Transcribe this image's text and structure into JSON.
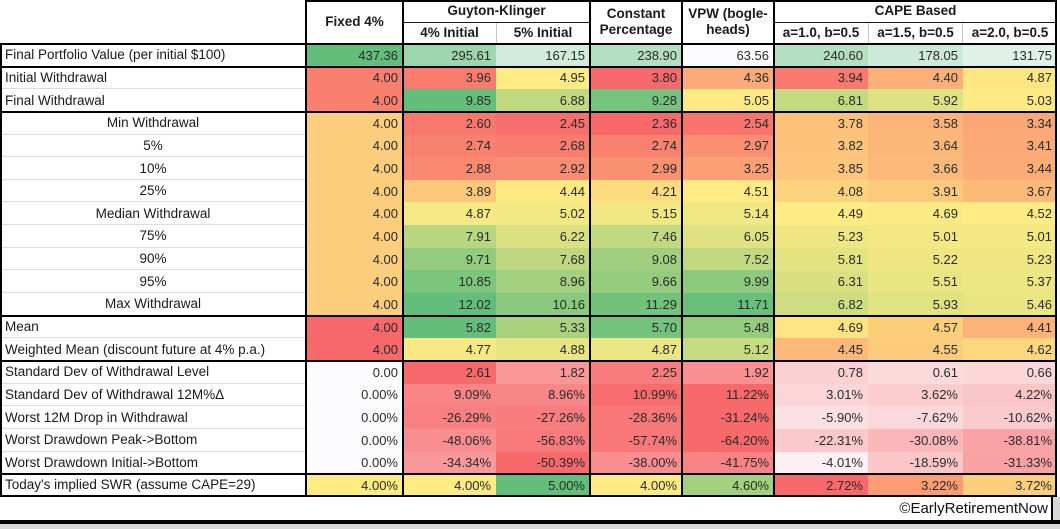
{
  "header": {
    "fixed": "Fixed 4%",
    "gk": "Guyton-Klinger",
    "gk_sub1": "4% Initial",
    "gk_sub2": "5% Initial",
    "constant_line1": "Constant",
    "constant_line2": "Percentage",
    "vpw_line1": "VPW (bogle-",
    "vpw_line2": "heads)",
    "cape": "CAPE Based",
    "cape_sub1": "a=1.0, b=0.5",
    "cape_sub2": "a=1.5, b=0.5",
    "cape_sub3": "a=2.0, b=0.5"
  },
  "palette": {
    "scale_red": "#F8696B",
    "scale_yellow": "#FFEB84",
    "scale_green": "#63BE7B",
    "scale_white": "#FCFCFF",
    "border_black": "#000000",
    "window_gray": "#D6D6D6"
  },
  "table": {
    "rows": [
      {
        "label": "Final Portfolio Value (per initial $100)",
        "align": "left",
        "values": [
          "437.36",
          "295.61",
          "167.15",
          "238.90",
          "63.56",
          "240.60",
          "178.05",
          "131.75"
        ],
        "colors": [
          "#63BE7B",
          "#9DD6AD",
          "#D2EBDA",
          "#B4DFC1",
          "#FCFCFF",
          "#B4DFC0",
          "#CDE9D7",
          "#E0F1E7"
        ]
      },
      {
        "label": "Initial Withdrawal",
        "align": "left",
        "values": [
          "4.00",
          "3.96",
          "4.95",
          "3.80",
          "4.36",
          "3.94",
          "4.40",
          "4.87"
        ],
        "colors": [
          "#F9806F",
          "#F97C6F",
          "#FEEB84",
          "#F8696B",
          "#FCAB78",
          "#F9796F",
          "#FCAF79",
          "#FEE683"
        ]
      },
      {
        "label": "Final Withdrawal",
        "align": "left",
        "values": [
          "4.00",
          "9.85",
          "6.88",
          "9.28",
          "5.05",
          "6.81",
          "5.92",
          "5.03"
        ],
        "colors": [
          "#F9806F",
          "#63BE7B",
          "#C1D980",
          "#75C37C",
          "#FBEA84",
          "#C3DA81",
          "#DFE282",
          "#FBEA84"
        ]
      },
      {
        "label": "Min Withdrawal",
        "align": "center",
        "values": [
          "4.00",
          "2.60",
          "2.45",
          "2.36",
          "2.54",
          "3.78",
          "3.58",
          "3.34"
        ],
        "colors": [
          "#FDCE7E",
          "#F9786E",
          "#F86E6C",
          "#F8696B",
          "#F9746D",
          "#FDC17A",
          "#FCB478",
          "#FBA676"
        ]
      },
      {
        "label": "5%",
        "align": "center",
        "values": [
          "4.00",
          "2.74",
          "2.68",
          "2.74",
          "2.97",
          "3.82",
          "3.64",
          "3.41"
        ],
        "colors": [
          "#FDCE7E",
          "#F9816F",
          "#F97D6E",
          "#F9816F",
          "#FA8F72",
          "#FDC37B",
          "#FCB879",
          "#FBAA76"
        ]
      },
      {
        "label": "10%",
        "align": "center",
        "values": [
          "4.00",
          "2.88",
          "2.92",
          "2.99",
          "3.25",
          "3.85",
          "3.66",
          "3.44"
        ],
        "colors": [
          "#FDCE7E",
          "#FA8971",
          "#FA8C71",
          "#FA9072",
          "#FBA075",
          "#FDC57B",
          "#FCB979",
          "#FBAC77"
        ]
      },
      {
        "label": "25%",
        "align": "center",
        "values": [
          "4.00",
          "3.89",
          "4.44",
          "4.21",
          "4.51",
          "4.08",
          "3.91",
          "3.67"
        ],
        "colors": [
          "#FDCE7E",
          "#FDC87C",
          "#FEE983",
          "#FEDB7F",
          "#FEEB84",
          "#FDD37E",
          "#FDC97C",
          "#FCBA79"
        ]
      },
      {
        "label": "Median Withdrawal",
        "align": "center",
        "values": [
          "4.00",
          "4.87",
          "5.02",
          "5.15",
          "5.14",
          "4.49",
          "4.69",
          "4.52"
        ],
        "colors": [
          "#FDCE7E",
          "#F7E984",
          "#F4E883",
          "#F1E783",
          "#F1E783",
          "#FEEB84",
          "#FAEA84",
          "#FEEB84"
        ]
      },
      {
        "label": "75%",
        "align": "center",
        "values": [
          "4.00",
          "7.91",
          "6.22",
          "7.46",
          "6.05",
          "5.23",
          "5.01",
          "5.01"
        ],
        "colors": [
          "#FDCE7E",
          "#B8D680",
          "#DBE182",
          "#C1D980",
          "#DEE282",
          "#EFE683",
          "#F4E883",
          "#F4E883"
        ]
      },
      {
        "label": "90%",
        "align": "center",
        "values": [
          "4.00",
          "9.71",
          "7.68",
          "9.08",
          "7.52",
          "5.81",
          "5.22",
          "5.23"
        ],
        "colors": [
          "#FDCE7E",
          "#93CC7E",
          "#BDD880",
          "#A0D07F",
          "#C0D980",
          "#E3E382",
          "#EFE683",
          "#EFE683"
        ]
      },
      {
        "label": "95%",
        "align": "center",
        "values": [
          "4.00",
          "10.85",
          "8.96",
          "9.66",
          "9.99",
          "6.31",
          "5.51",
          "5.37"
        ],
        "colors": [
          "#FDCE7E",
          "#7BC57C",
          "#A2D07F",
          "#94CC7E",
          "#8DCA7D",
          "#D9E082",
          "#E9E583",
          "#ECE683"
        ]
      },
      {
        "label": "Max Withdrawal",
        "align": "center",
        "values": [
          "4.00",
          "12.02",
          "10.16",
          "11.29",
          "11.71",
          "6.82",
          "5.93",
          "5.46"
        ],
        "colors": [
          "#FDCE7E",
          "#63BE7B",
          "#89C97D",
          "#72C27C",
          "#69C07B",
          "#CEDD81",
          "#E1E282",
          "#EAE583"
        ]
      },
      {
        "label": "Mean",
        "align": "left",
        "values": [
          "4.00",
          "5.82",
          "5.33",
          "5.70",
          "5.48",
          "4.69",
          "4.57",
          "4.41"
        ],
        "colors": [
          "#F8696B",
          "#63BE7B",
          "#A9D27F",
          "#74C37C",
          "#94CC7E",
          "#FEE483",
          "#FDCF7D",
          "#FCB278"
        ]
      },
      {
        "label": "Weighted Mean (discount future at 4% p.a.)",
        "align": "left",
        "values": [
          "4.00",
          "4.77",
          "4.88",
          "4.87",
          "5.12",
          "4.45",
          "4.55",
          "4.62"
        ],
        "colors": [
          "#F8696B",
          "#F9E984",
          "#E9E583",
          "#EBE583",
          "#C7DB81",
          "#FCB979",
          "#FDCB7C",
          "#FED77F"
        ]
      },
      {
        "label": "Standard Dev of Withdrawal Level",
        "align": "left",
        "values": [
          "0.00",
          "2.61",
          "1.82",
          "2.25",
          "1.92",
          "0.78",
          "0.61",
          "0.66"
        ],
        "colors": [
          "#FCFCFF",
          "#F8696B",
          "#F99698",
          "#F97D7F",
          "#F99092",
          "#FBD0D3",
          "#FBDADC",
          "#FBD7DA"
        ]
      },
      {
        "label": "Standard Dev of Withdrawal 12M%Δ",
        "align": "left",
        "values": [
          "0.00%",
          "9.09%",
          "8.96%",
          "10.99%",
          "11.22%",
          "3.01%",
          "3.62%",
          "4.22%"
        ],
        "colors": [
          "#FCFCFF",
          "#F98587",
          "#F98789",
          "#F86C6E",
          "#F8696B",
          "#FBD5D7",
          "#FBCDCF",
          "#FAC5C7"
        ]
      },
      {
        "label": "Worst 12M Drop in Withdrawal",
        "align": "left",
        "values": [
          "0.00%",
          "-26.29%",
          "-27.26%",
          "-28.36%",
          "-31.24%",
          "-5.90%",
          "-7.62%",
          "-10.62%"
        ],
        "colors": [
          "#FCFCFF",
          "#F98082",
          "#F97C7E",
          "#F87779",
          "#F8696B",
          "#FBE0E3",
          "#FBD8DB",
          "#FBCACD"
        ]
      },
      {
        "label": "Worst Drawdown Peak->Bottom",
        "align": "left",
        "values": [
          "0.00%",
          "-48.06%",
          "-56.83%",
          "-57.74%",
          "-64.20%",
          "-22.31%",
          "-30.08%",
          "-38.81%"
        ],
        "colors": [
          "#FCFCFF",
          "#F98E90",
          "#F87A7C",
          "#F8787A",
          "#F8696B",
          "#FBC9CC",
          "#FAB7BA",
          "#FAA3A6"
        ]
      },
      {
        "label": "Worst Drawdown Initial->Bottom",
        "align": "left",
        "values": [
          "0.00%",
          "-34.34%",
          "-50.39%",
          "-38.00%",
          "-41.75%",
          "-4.01%",
          "-18.59%",
          "-31.33%"
        ],
        "colors": [
          "#FCFCFF",
          "#F9989A",
          "#F8696B",
          "#F98D8F",
          "#F98284",
          "#FCF0F3",
          "#FBC6C8",
          "#FAA1A3"
        ]
      },
      {
        "label": "Today's implied SWR (assume CAPE=29)",
        "align": "left",
        "values": [
          "4.00%",
          "4.00%",
          "5.00%",
          "4.00%",
          "4.60%",
          "2.72%",
          "3.22%",
          "3.72%"
        ],
        "colors": [
          "#FFEB84",
          "#FFEB84",
          "#63BE7B",
          "#FFEB84",
          "#A1D07F",
          "#F8696B",
          "#FB9C75",
          "#FDCF7D"
        ]
      }
    ]
  },
  "footer": {
    "credit": "©EarlyRetirementNow"
  }
}
